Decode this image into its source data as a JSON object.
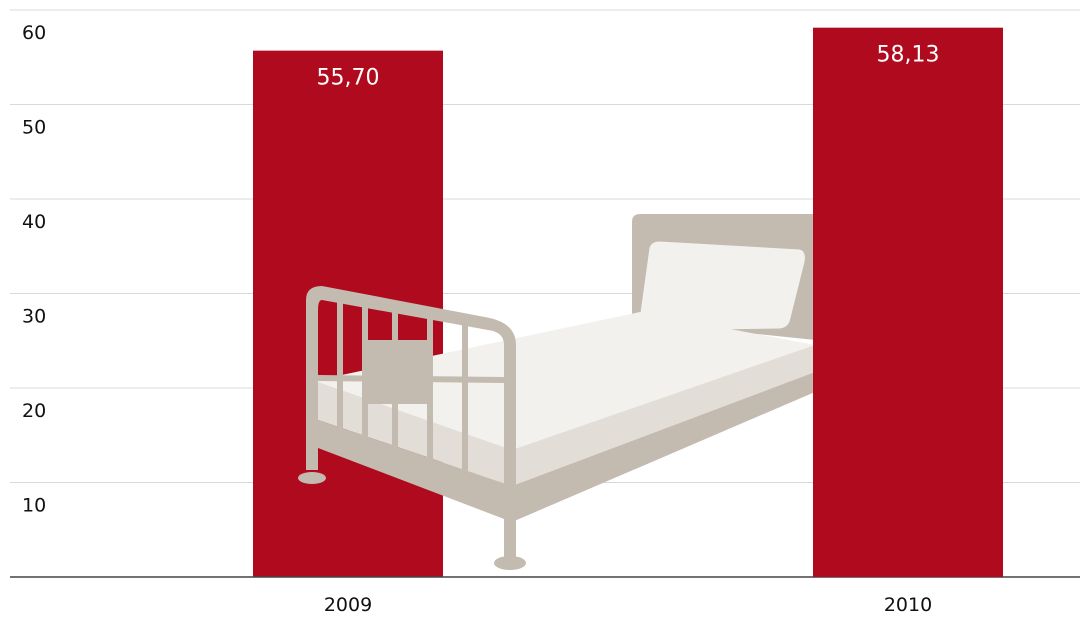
{
  "chart_data": {
    "type": "bar",
    "categories": [
      "2009",
      "2010"
    ],
    "values": [
      55.7,
      58.13
    ],
    "value_labels": [
      "55,70",
      "58,13"
    ],
    "color": "#b00a1e",
    "ylim": [
      0,
      60
    ],
    "yticks": [
      10,
      20,
      30,
      40,
      50,
      60
    ],
    "grid": true
  }
}
